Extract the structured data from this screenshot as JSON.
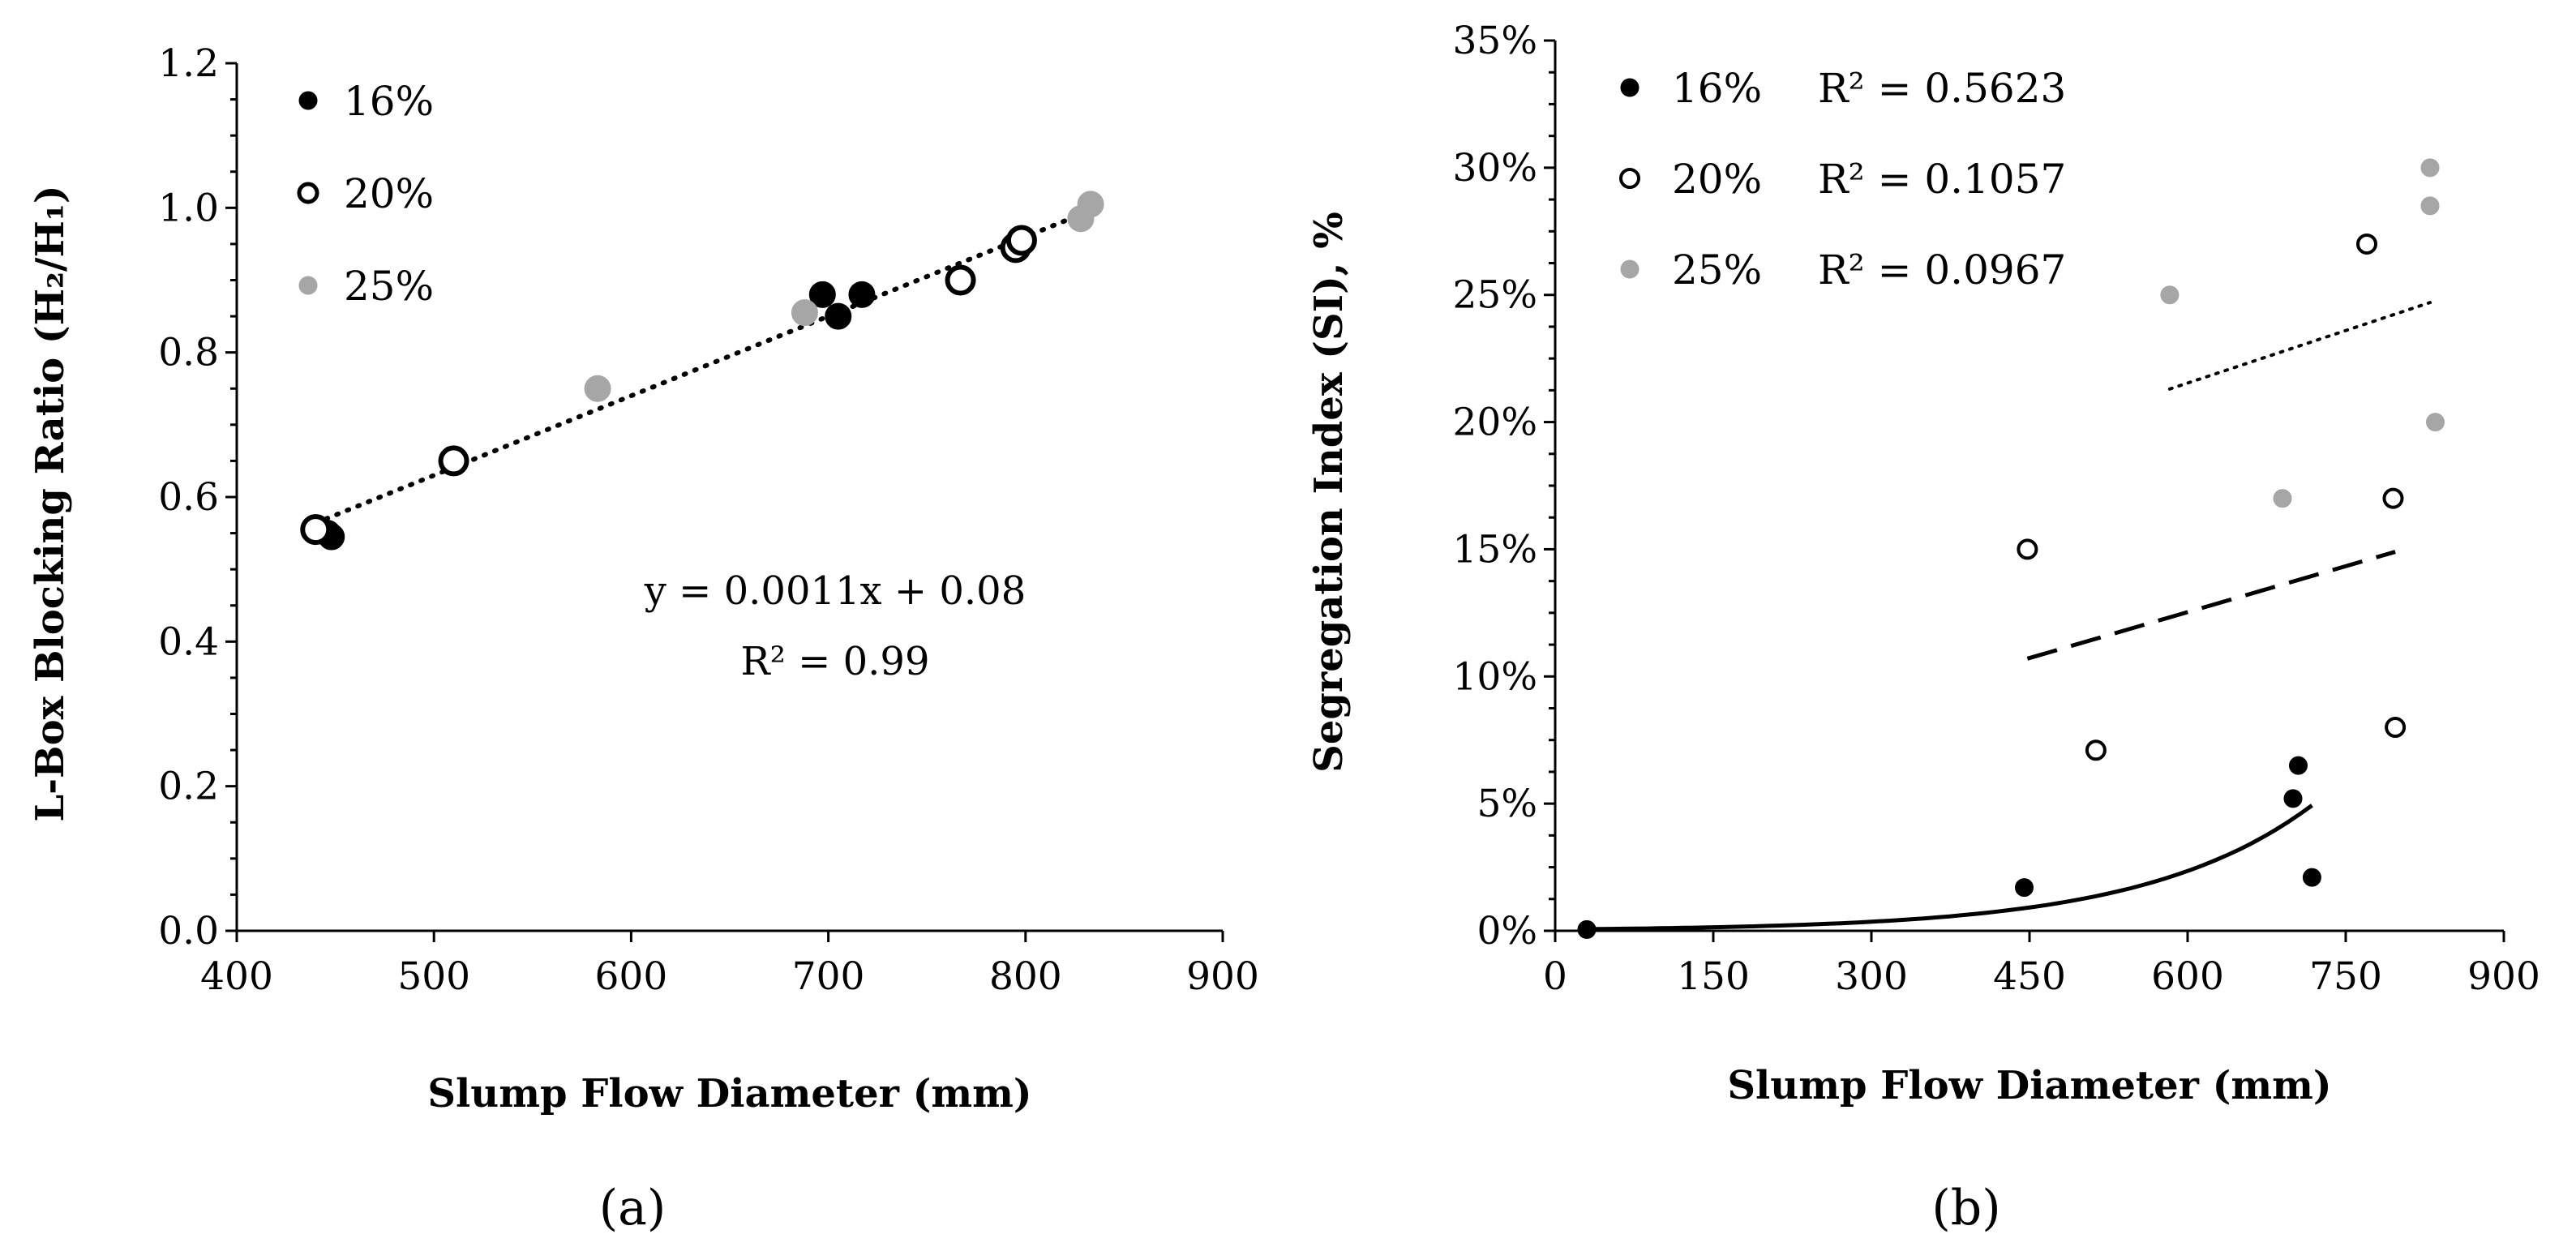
{
  "chart_data": [
    {
      "id": "a",
      "type": "scatter",
      "panel_label": "(a)",
      "xlabel": "Slump Flow Diameter (mm)",
      "ylabel": "L-Box Blocking Ratio (H₂/H₁)",
      "xlim": [
        400,
        900
      ],
      "ylim": [
        0,
        1.2
      ],
      "xticks": [
        "400",
        "500",
        "600",
        "700",
        "800",
        "900"
      ],
      "yticks": [
        "0.0",
        "0.2",
        "0.4",
        "0.6",
        "0.8",
        "1.0",
        "1.2"
      ],
      "legend_position": "top-left",
      "series": [
        {
          "name": "16%",
          "marker": "filled",
          "color": "#000000",
          "points": [
            [
              446,
              0.55
            ],
            [
              448,
              0.545
            ],
            [
              697,
              0.88
            ],
            [
              705,
              0.85
            ],
            [
              717,
              0.88
            ]
          ]
        },
        {
          "name": "20%",
          "marker": "open",
          "color": "#000000",
          "points": [
            [
              440,
              0.555
            ],
            [
              510,
              0.65
            ],
            [
              767,
              0.9
            ],
            [
              795,
              0.945
            ],
            [
              798,
              0.955
            ]
          ]
        },
        {
          "name": "25%",
          "marker": "filled",
          "color": "#a6a6a6",
          "points": [
            [
              583,
              0.75
            ],
            [
              688,
              0.855
            ],
            [
              828,
              0.985
            ],
            [
              833,
              1.005
            ]
          ]
        }
      ],
      "trendline": {
        "style": "dotted",
        "slope": 0.0011,
        "intercept": 0.08,
        "x_range": [
          440,
          833
        ]
      },
      "annotations": [
        "y = 0.0011x + 0.08",
        "R² = 0.99"
      ]
    },
    {
      "id": "b",
      "type": "scatter",
      "panel_label": "(b)",
      "xlabel": "Slump Flow Diameter (mm)",
      "ylabel": "Segregation Index (SI), %",
      "xlim": [
        0,
        900
      ],
      "ylim": [
        0,
        35
      ],
      "xticks": [
        "0",
        "150",
        "300",
        "450",
        "600",
        "750",
        "900"
      ],
      "yticks": [
        "0%",
        "5%",
        "10%",
        "15%",
        "20%",
        "25%",
        "30%",
        "35%"
      ],
      "legend_position": "top-left",
      "series": [
        {
          "name": "16%",
          "r2": "R² = 0.5623",
          "marker": "filled",
          "color": "#000000",
          "points": [
            [
              30,
              0.05
            ],
            [
              445,
              1.7
            ],
            [
              700,
              5.2
            ],
            [
              705,
              6.5
            ],
            [
              718,
              2.1
            ]
          ],
          "trend": {
            "style": "solid",
            "kind": "exponential",
            "a": 0.0543,
            "b": 0.00628,
            "x_range": [
              30,
              718
            ]
          }
        },
        {
          "name": "20%",
          "r2": "R² = 0.1057",
          "marker": "open",
          "color": "#000000",
          "points": [
            [
              448,
              15.0
            ],
            [
              513,
              7.1
            ],
            [
              770,
              27.0
            ],
            [
              795,
              17.0
            ],
            [
              797,
              8.0
            ]
          ],
          "trend": {
            "style": "dashed",
            "kind": "linear",
            "y_start": 10.7,
            "y_end": 14.9,
            "x_range": [
              448,
              797
            ]
          }
        },
        {
          "name": "25%",
          "r2": "R² = 0.0967",
          "marker": "filled",
          "color": "#a6a6a6",
          "points": [
            [
              583,
              25.0
            ],
            [
              690,
              17.0
            ],
            [
              830,
              30.0
            ],
            [
              830,
              28.5
            ],
            [
              835,
              20.0
            ]
          ],
          "trend": {
            "style": "dotted",
            "kind": "linear",
            "y_start": 21.3,
            "y_end": 24.7,
            "x_range": [
              583,
              830
            ]
          }
        }
      ]
    }
  ]
}
